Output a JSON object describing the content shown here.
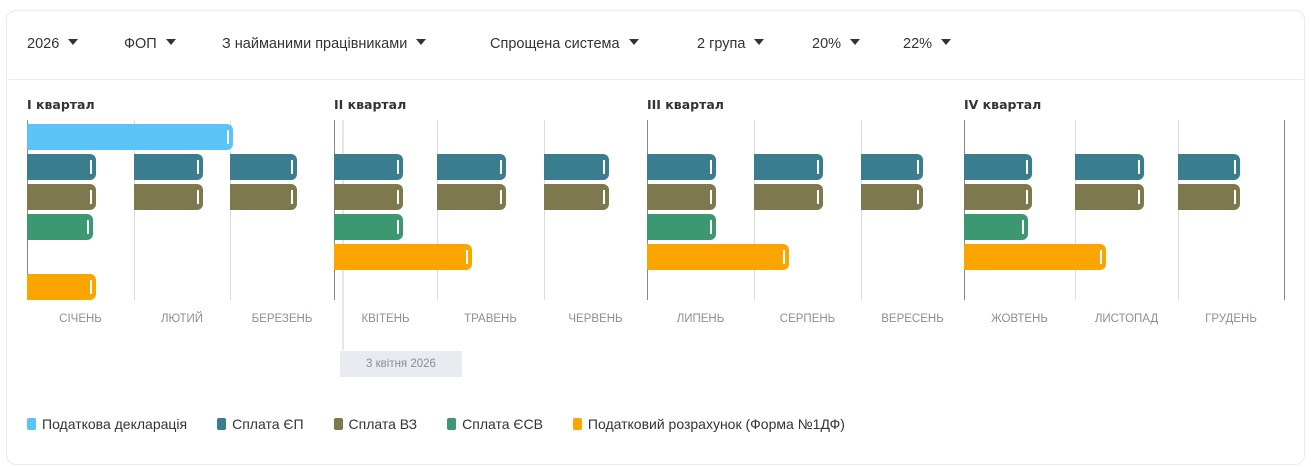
{
  "filters": [
    {
      "label": "2026"
    },
    {
      "label": "ФОП"
    },
    {
      "label": "З найманими працівниками"
    },
    {
      "label": "Спрощена система"
    },
    {
      "label": "2 група"
    },
    {
      "label": "20%"
    },
    {
      "label": "22%"
    }
  ],
  "chart_data": {
    "type": "gantt",
    "year": 2026,
    "quarters": [
      "I квартал",
      "II квартал",
      "III квартал",
      "IV квартал"
    ],
    "months": [
      "СІЧЕНЬ",
      "ЛЮТИЙ",
      "БЕРЕЗЕНЬ",
      "КВІТЕНЬ",
      "ТРАВЕНЬ",
      "ЧЕРВЕНЬ",
      "ЛИПЕНЬ",
      "СЕРПЕНЬ",
      "ВЕРЕСЕНЬ",
      "ЖОВТЕНЬ",
      "ЛИСТОПАД",
      "ГРУДЕНЬ"
    ],
    "series": [
      {
        "name": "Податкова декларація",
        "color": "#5bc4f7"
      },
      {
        "name": "Сплата ЄП",
        "color": "#3a7d8f"
      },
      {
        "name": "Сплата ВЗ",
        "color": "#7e784f"
      },
      {
        "name": "Сплата ЄСВ",
        "color": "#3c9871"
      },
      {
        "name": "Податковий розрахунок (Форма №1ДФ)",
        "color": "#fba500"
      }
    ],
    "bars": [
      {
        "series": 0,
        "row": 0,
        "start": [
          1,
          1
        ],
        "end": [
          3,
          1
        ]
      },
      {
        "series": 1,
        "row": 1,
        "start": [
          1,
          1
        ],
        "end": [
          1,
          20
        ]
      },
      {
        "series": 1,
        "row": 1,
        "start": [
          2,
          1
        ],
        "end": [
          2,
          20
        ]
      },
      {
        "series": 1,
        "row": 1,
        "start": [
          3,
          1
        ],
        "end": [
          3,
          20
        ]
      },
      {
        "series": 1,
        "row": 1,
        "start": [
          4,
          1
        ],
        "end": [
          4,
          20
        ]
      },
      {
        "series": 1,
        "row": 1,
        "start": [
          5,
          1
        ],
        "end": [
          5,
          20
        ]
      },
      {
        "series": 1,
        "row": 1,
        "start": [
          6,
          1
        ],
        "end": [
          6,
          19
        ]
      },
      {
        "series": 1,
        "row": 1,
        "start": [
          7,
          1
        ],
        "end": [
          7,
          20
        ]
      },
      {
        "series": 1,
        "row": 1,
        "start": [
          8,
          1
        ],
        "end": [
          8,
          20
        ]
      },
      {
        "series": 1,
        "row": 1,
        "start": [
          9,
          1
        ],
        "end": [
          9,
          18
        ]
      },
      {
        "series": 1,
        "row": 1,
        "start": [
          10,
          1
        ],
        "end": [
          10,
          19
        ]
      },
      {
        "series": 1,
        "row": 1,
        "start": [
          11,
          1
        ],
        "end": [
          11,
          20
        ]
      },
      {
        "series": 1,
        "row": 1,
        "start": [
          12,
          1
        ],
        "end": [
          12,
          18
        ]
      },
      {
        "series": 2,
        "row": 2,
        "start": [
          1,
          1
        ],
        "end": [
          1,
          20
        ]
      },
      {
        "series": 2,
        "row": 2,
        "start": [
          2,
          1
        ],
        "end": [
          2,
          20
        ]
      },
      {
        "series": 2,
        "row": 2,
        "start": [
          3,
          1
        ],
        "end": [
          3,
          20
        ]
      },
      {
        "series": 2,
        "row": 2,
        "start": [
          4,
          1
        ],
        "end": [
          4,
          20
        ]
      },
      {
        "series": 2,
        "row": 2,
        "start": [
          5,
          1
        ],
        "end": [
          5,
          20
        ]
      },
      {
        "series": 2,
        "row": 2,
        "start": [
          6,
          1
        ],
        "end": [
          6,
          19
        ]
      },
      {
        "series": 2,
        "row": 2,
        "start": [
          7,
          1
        ],
        "end": [
          7,
          20
        ]
      },
      {
        "series": 2,
        "row": 2,
        "start": [
          8,
          1
        ],
        "end": [
          8,
          20
        ]
      },
      {
        "series": 2,
        "row": 2,
        "start": [
          9,
          1
        ],
        "end": [
          9,
          18
        ]
      },
      {
        "series": 2,
        "row": 2,
        "start": [
          10,
          1
        ],
        "end": [
          10,
          19
        ]
      },
      {
        "series": 2,
        "row": 2,
        "start": [
          11,
          1
        ],
        "end": [
          11,
          20
        ]
      },
      {
        "series": 2,
        "row": 2,
        "start": [
          12,
          1
        ],
        "end": [
          12,
          18
        ]
      },
      {
        "series": 3,
        "row": 3,
        "start": [
          1,
          1
        ],
        "end": [
          1,
          19
        ]
      },
      {
        "series": 3,
        "row": 3,
        "start": [
          4,
          1
        ],
        "end": [
          4,
          20
        ]
      },
      {
        "series": 3,
        "row": 3,
        "start": [
          7,
          1
        ],
        "end": [
          7,
          20
        ]
      },
      {
        "series": 3,
        "row": 3,
        "start": [
          10,
          1
        ],
        "end": [
          10,
          18
        ]
      },
      {
        "series": 4,
        "row": 5,
        "start": [
          1,
          1
        ],
        "end": [
          1,
          20
        ]
      },
      {
        "series": 4,
        "row": 4,
        "start": [
          4,
          1
        ],
        "end": [
          5,
          10
        ]
      },
      {
        "series": 4,
        "row": 4,
        "start": [
          7,
          1
        ],
        "end": [
          8,
          10
        ]
      },
      {
        "series": 4,
        "row": 4,
        "start": [
          10,
          1
        ],
        "end": [
          11,
          9
        ]
      }
    ],
    "today": {
      "date": [
        4,
        3
      ],
      "label": "3 квітня 2026"
    }
  }
}
